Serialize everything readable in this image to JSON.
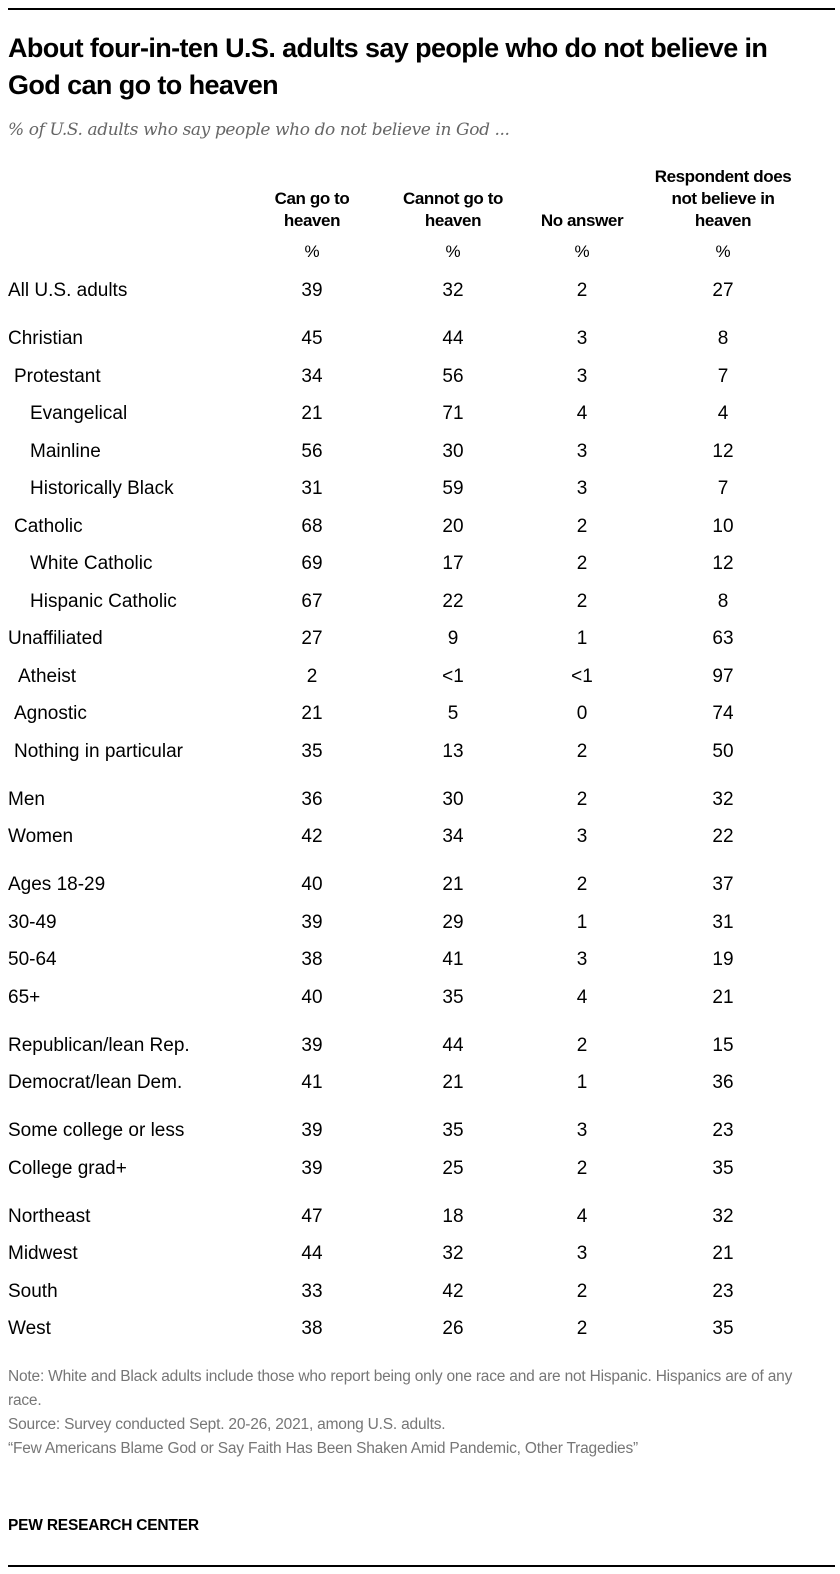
{
  "title": "About four-in-ten U.S. adults say people who do not believe in God can go to heaven",
  "subtitle": "% of U.S. adults who say people who do not believe in God ...",
  "chart_data": {
    "type": "table",
    "columns": [
      "Can go to heaven",
      "Cannot go to heaven",
      "No answer",
      "Respondent does not believe in heaven"
    ],
    "unit_row": [
      "%",
      "%",
      "%",
      "%"
    ],
    "rows": [
      {
        "label": "All U.S. adults",
        "indent": 0,
        "group_start": true,
        "values": [
          "39",
          "32",
          "2",
          "27"
        ]
      },
      {
        "label": "Christian",
        "indent": 0,
        "group_start": true,
        "values": [
          "45",
          "44",
          "3",
          "8"
        ]
      },
      {
        "label": "Protestant",
        "indent": 1,
        "group_start": false,
        "values": [
          "34",
          "56",
          "3",
          "7"
        ]
      },
      {
        "label": "Evangelical",
        "indent": 2,
        "group_start": false,
        "values": [
          "21",
          "71",
          "4",
          "4"
        ]
      },
      {
        "label": "Mainline",
        "indent": 2,
        "group_start": false,
        "values": [
          "56",
          "30",
          "3",
          "12"
        ]
      },
      {
        "label": "Historically Black",
        "indent": 2,
        "group_start": false,
        "values": [
          "31",
          "59",
          "3",
          "7"
        ]
      },
      {
        "label": "Catholic",
        "indent": 1,
        "group_start": false,
        "values": [
          "68",
          "20",
          "2",
          "10"
        ]
      },
      {
        "label": "White Catholic",
        "indent": 2,
        "group_start": false,
        "values": [
          "69",
          "17",
          "2",
          "12"
        ]
      },
      {
        "label": "Hispanic Catholic",
        "indent": 2,
        "group_start": false,
        "values": [
          "67",
          "22",
          "2",
          "8"
        ]
      },
      {
        "label": "Unaffiliated",
        "indent": 0,
        "group_start": false,
        "values": [
          "27",
          "9",
          "1",
          "63"
        ]
      },
      {
        "label": "Atheist",
        "indent": 1,
        "group_start": false,
        "values": [
          "2",
          "<1",
          "<1",
          "97"
        ]
      },
      {
        "label": "Agnostic",
        "indent": 1,
        "group_start": false,
        "values": [
          "21",
          "5",
          "0",
          "74"
        ]
      },
      {
        "label": "Nothing in particular",
        "indent": 1,
        "group_start": false,
        "values": [
          "35",
          "13",
          "2",
          "50"
        ]
      },
      {
        "label": "Men",
        "indent": 0,
        "group_start": true,
        "values": [
          "36",
          "30",
          "2",
          "32"
        ]
      },
      {
        "label": "Women",
        "indent": 0,
        "group_start": false,
        "values": [
          "42",
          "34",
          "3",
          "22"
        ]
      },
      {
        "label": "Ages 18-29",
        "indent": 0,
        "group_start": true,
        "values": [
          "40",
          "21",
          "2",
          "37"
        ]
      },
      {
        "label": "30-49",
        "indent": 0,
        "group_start": false,
        "values": [
          "39",
          "29",
          "1",
          "31"
        ]
      },
      {
        "label": "50-64",
        "indent": 0,
        "group_start": false,
        "values": [
          "38",
          "41",
          "3",
          "19"
        ]
      },
      {
        "label": "65+",
        "indent": 0,
        "group_start": false,
        "values": [
          "40",
          "35",
          "4",
          "21"
        ]
      },
      {
        "label": "Republican/lean Rep.",
        "indent": 0,
        "group_start": true,
        "values": [
          "39",
          "44",
          "2",
          "15"
        ]
      },
      {
        "label": "Democrat/lean Dem.",
        "indent": 0,
        "group_start": false,
        "values": [
          "41",
          "21",
          "1",
          "36"
        ]
      },
      {
        "label": "Some college or less",
        "indent": 0,
        "group_start": true,
        "values": [
          "39",
          "35",
          "3",
          "23"
        ]
      },
      {
        "label": "College grad+",
        "indent": 0,
        "group_start": false,
        "values": [
          "39",
          "25",
          "2",
          "35"
        ]
      },
      {
        "label": "Northeast",
        "indent": 0,
        "group_start": true,
        "values": [
          "47",
          "18",
          "4",
          "32"
        ]
      },
      {
        "label": "Midwest",
        "indent": 0,
        "group_start": false,
        "values": [
          "44",
          "32",
          "3",
          "21"
        ]
      },
      {
        "label": "South",
        "indent": 0,
        "group_start": false,
        "values": [
          "33",
          "42",
          "2",
          "23"
        ]
      },
      {
        "label": "West",
        "indent": 0,
        "group_start": false,
        "values": [
          "38",
          "26",
          "2",
          "35"
        ]
      }
    ]
  },
  "notes": [
    "Note: White and Black adults include those who report being only one race and are not Hispanic. Hispanics are of any race.",
    "Source: Survey conducted Sept. 20-26, 2021, among U.S. adults.",
    "“Few Americans Blame God or Say Faith Has Been Shaken Amid Pandemic, Other Tragedies”"
  ],
  "brand": "PEW RESEARCH CENTER"
}
